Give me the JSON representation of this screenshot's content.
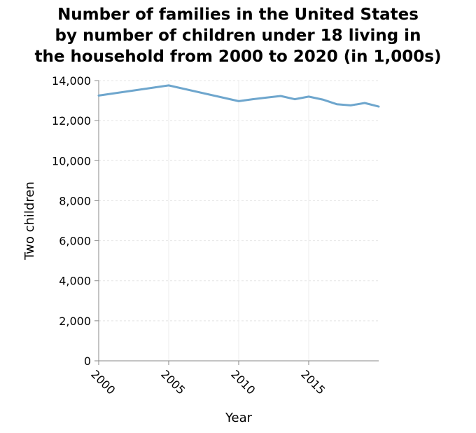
{
  "chart_data": {
    "type": "line",
    "title_lines": [
      "Number of families in the United States",
      "by number of children under 18 living in",
      "the household from 2000 to 2020 (in 1,000s)"
    ],
    "xlabel": "Year",
    "ylabel": "Two children",
    "xlim": [
      2000,
      2020
    ],
    "ylim": [
      0,
      14000
    ],
    "x_ticks": [
      2000,
      2005,
      2010,
      2015
    ],
    "x_tick_labels": [
      "2000",
      "2005",
      "2010",
      "2015"
    ],
    "y_ticks": [
      0,
      2000,
      4000,
      6000,
      8000,
      10000,
      12000,
      14000
    ],
    "y_tick_labels": [
      "0",
      "2,000",
      "4,000",
      "6,000",
      "8,000",
      "10,000",
      "12,000",
      "14,000"
    ],
    "grid": true,
    "line_color": "#6ea6cd",
    "series": [
      {
        "x": [
          2000,
          2005,
          2010,
          2011,
          2012,
          2013,
          2014,
          2015,
          2016,
          2017,
          2018,
          2019,
          2020
        ],
        "values": [
          13250,
          13760,
          12970,
          13070,
          13150,
          13230,
          13070,
          13200,
          13050,
          12820,
          12760,
          12880,
          12700
        ]
      }
    ]
  }
}
